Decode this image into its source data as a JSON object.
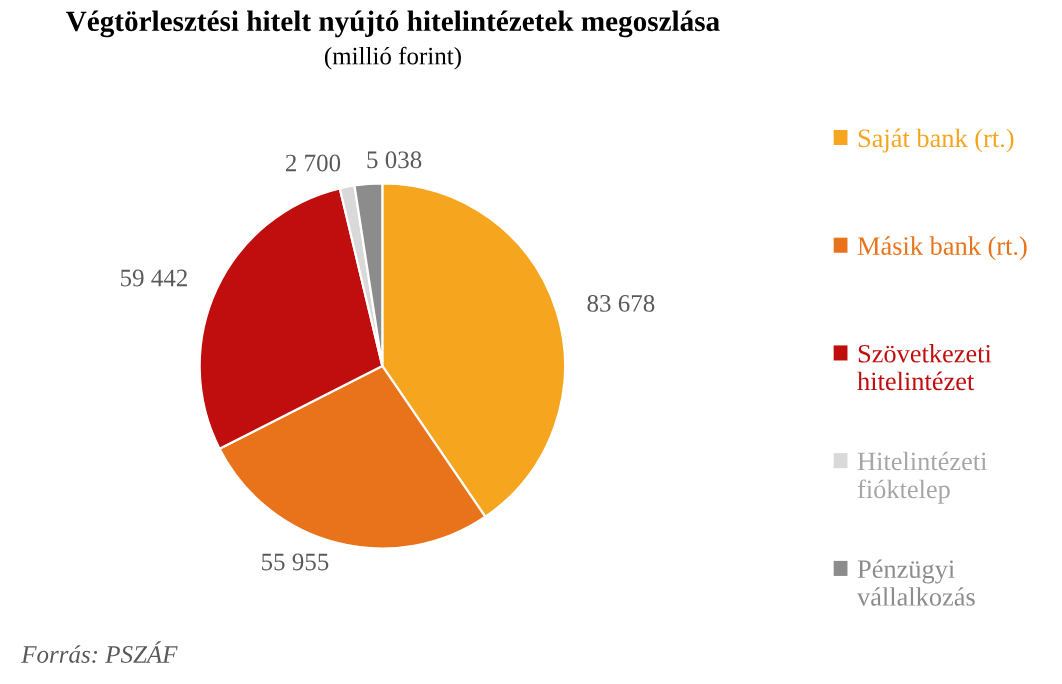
{
  "chart_data": {
    "type": "pie",
    "title": "Végtörlesztési hitelt nyújtó hitelintézetek megoszlása",
    "subtitle": "(millió forint)",
    "categories": [
      "Saját bank (rt.)",
      "Másik bank (rt.)",
      "Szövetkezeti hitelintézet",
      "Hitelintézeti fióktelep",
      "Pénzügyi vállalkozás"
    ],
    "values": [
      83678,
      55955,
      59442,
      2700,
      5038
    ],
    "value_labels": [
      "83 678",
      "55 955",
      "59 442",
      "2 700",
      "5 038"
    ],
    "colors": [
      "#f5a51e",
      "#e8731a",
      "#c00d0d",
      "#d9d9d9",
      "#8c8c8c"
    ],
    "legend": "right",
    "annotations": [
      "Forrás: PSZÁF"
    ]
  }
}
